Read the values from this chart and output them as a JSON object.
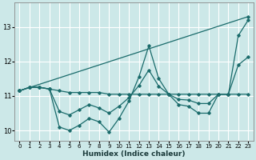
{
  "xlabel": "Humidex (Indice chaleur)",
  "bg_color": "#cce8e8",
  "grid_color": "#ffffff",
  "line_color": "#1a6b6b",
  "xlim": [
    -0.5,
    23.5
  ],
  "ylim": [
    9.7,
    13.7
  ],
  "xticks": [
    0,
    1,
    2,
    3,
    4,
    5,
    6,
    7,
    8,
    9,
    10,
    11,
    12,
    13,
    14,
    15,
    16,
    17,
    18,
    19,
    20,
    21,
    22,
    23
  ],
  "yticks": [
    10,
    11,
    12,
    13
  ],
  "line_diagonal": {
    "x": [
      0,
      23
    ],
    "y": [
      11.15,
      13.3
    ]
  },
  "line_flat": {
    "x": [
      0,
      1,
      2,
      3,
      4,
      5,
      6,
      7,
      8,
      9,
      10,
      11,
      12,
      13,
      14,
      15,
      16,
      17,
      18,
      19,
      20,
      21,
      22,
      23
    ],
    "y": [
      11.15,
      11.25,
      11.25,
      11.2,
      11.15,
      11.1,
      11.1,
      11.1,
      11.1,
      11.05,
      11.05,
      11.05,
      11.05,
      11.05,
      11.05,
      11.05,
      11.05,
      11.05,
      11.05,
      11.05,
      11.05,
      11.05,
      11.05,
      11.05
    ]
  },
  "line_zigzag1": {
    "x": [
      0,
      1,
      2,
      3,
      4,
      5,
      6,
      7,
      8,
      9,
      10,
      11,
      12,
      13,
      14,
      15,
      16,
      17,
      18,
      19,
      20,
      21,
      22,
      23
    ],
    "y": [
      11.15,
      11.25,
      11.25,
      11.2,
      10.1,
      10.0,
      10.15,
      10.35,
      10.25,
      9.95,
      10.35,
      10.85,
      11.55,
      12.45,
      11.5,
      11.05,
      10.75,
      10.7,
      10.5,
      10.5,
      11.05,
      11.05,
      12.75,
      13.2
    ]
  },
  "line_zigzag2": {
    "x": [
      0,
      1,
      2,
      3,
      4,
      5,
      6,
      7,
      8,
      9,
      10,
      11,
      12,
      13,
      14,
      15,
      16,
      17,
      18,
      19,
      20,
      21,
      22,
      23
    ],
    "y": [
      11.15,
      11.25,
      11.25,
      11.2,
      10.55,
      10.45,
      10.6,
      10.75,
      10.65,
      10.5,
      10.7,
      10.95,
      11.3,
      11.75,
      11.28,
      11.05,
      10.9,
      10.88,
      10.78,
      10.78,
      11.05,
      11.05,
      11.9,
      12.13
    ]
  }
}
